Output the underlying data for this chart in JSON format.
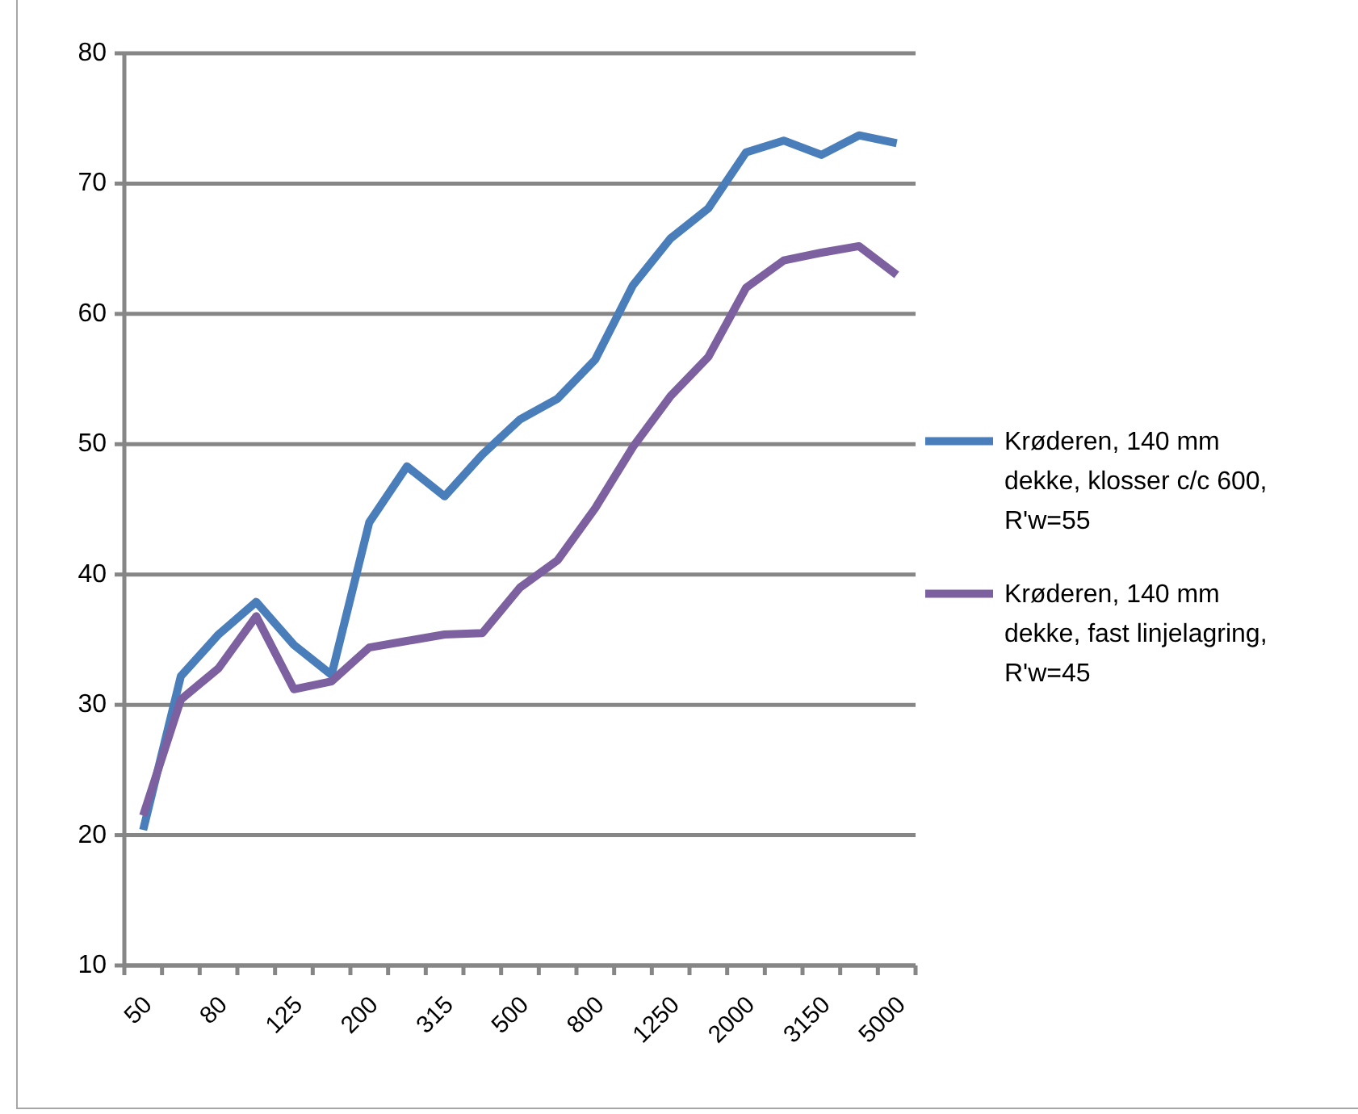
{
  "chart_data": {
    "type": "line",
    "categories": [
      "50",
      null,
      "80",
      null,
      "125",
      null,
      "200",
      null,
      "315",
      null,
      "500",
      null,
      "800",
      null,
      "1250",
      null,
      "2000",
      null,
      "3150",
      null,
      "5000"
    ],
    "series": [
      {
        "name": "Krøderen, 140 mm dekke, klosser c/c 600, R'w=55",
        "color": "#4a7ebb",
        "values": [
          20.4,
          32.2,
          35.4,
          37.9,
          34.6,
          32.3,
          44.0,
          48.3,
          46.0,
          49.2,
          51.9,
          53.5,
          56.5,
          62.2,
          65.8,
          68.1,
          72.4,
          73.3,
          72.2,
          73.7,
          73.1
        ]
      },
      {
        "name": "Krøderen, 140 mm dekke, fast linjelagring, R'w=45",
        "color": "#7d60a0",
        "values": [
          21.5,
          30.4,
          32.8,
          36.8,
          31.2,
          31.8,
          34.4,
          34.9,
          35.4,
          35.5,
          39.0,
          41.1,
          45.1,
          49.8,
          53.7,
          56.7,
          62.0,
          64.1,
          64.7,
          65.2,
          63.0
        ]
      }
    ],
    "ylim": [
      10,
      80
    ],
    "yticks": [
      10,
      20,
      30,
      40,
      50,
      60,
      70,
      80
    ],
    "grid": "y",
    "legend": "right",
    "line_style": "solid"
  }
}
